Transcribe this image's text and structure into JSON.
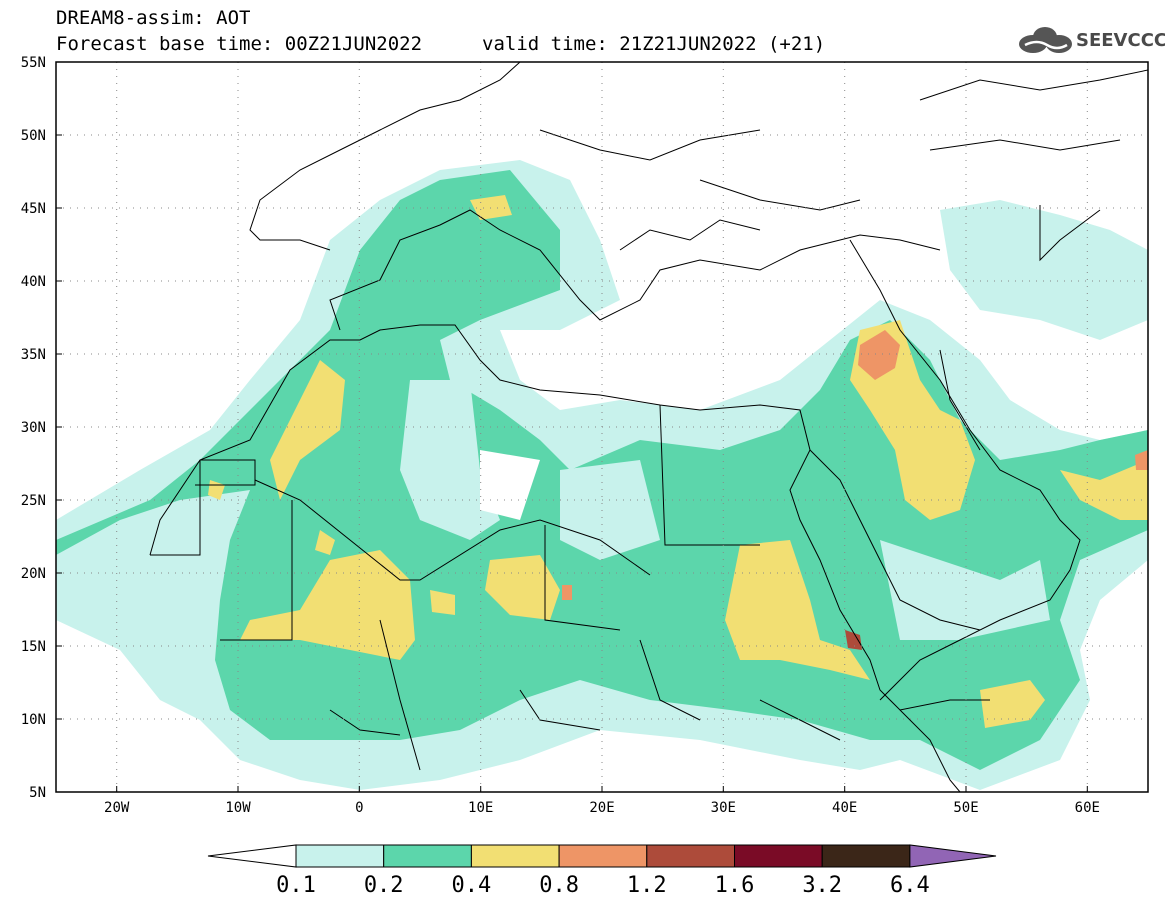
{
  "header": {
    "title": "DREAM8-assim: AOT",
    "base_time": "Forecast base time: 00Z21JUN2022",
    "valid_time": "valid time: 21Z21JUN2022 (+21)",
    "logo_text": "SEEVCCC",
    "logo_icon": "cloud-icon"
  },
  "map": {
    "lat_labels": [
      "55N",
      "50N",
      "45N",
      "40N",
      "35N",
      "30N",
      "25N",
      "20N",
      "15N",
      "10N",
      "5N"
    ],
    "lon_labels": [
      "20W",
      "10W",
      "0",
      "10E",
      "20E",
      "30E",
      "40E",
      "50E",
      "60E"
    ],
    "lat_range": [
      5,
      55
    ],
    "lon_range": [
      -25,
      65
    ],
    "grid": "dotted"
  },
  "colorbar": {
    "labels": [
      "0.1",
      "0.2",
      "0.4",
      "0.8",
      "1.2",
      "1.6",
      "3.2",
      "6.4"
    ],
    "colors": [
      "#c8f2ec",
      "#5cd6ab",
      "#f2df73",
      "#ee9566",
      "#ad4b3a",
      "#7a0b26",
      "#3b2618",
      "#9165b5"
    ]
  }
}
